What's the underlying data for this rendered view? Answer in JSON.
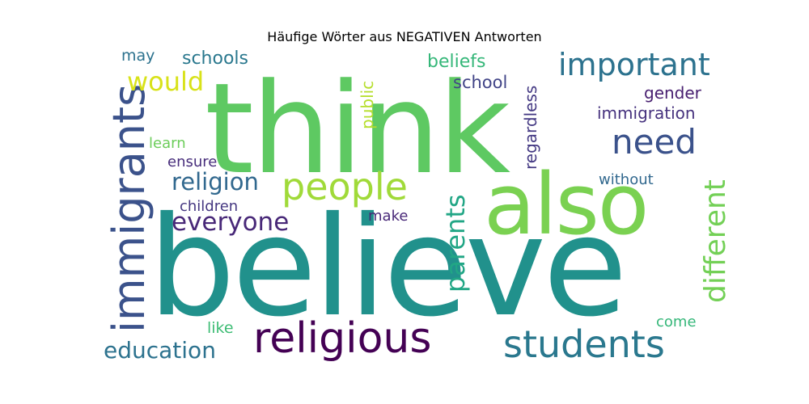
{
  "chart_data": {
    "type": "wordcloud",
    "title": "Häufige Wörter aus NEGATIVEN Antworten",
    "background": "#ffffff",
    "colormap": "viridis",
    "words": [
      {
        "text": "believe",
        "color": "#21918c",
        "rotated": false
      },
      {
        "text": "think",
        "color": "#5ec962",
        "rotated": false
      },
      {
        "text": "also",
        "color": "#7ad151",
        "rotated": false
      },
      {
        "text": "immigrants",
        "color": "#3b528b",
        "rotated": true
      },
      {
        "text": "religious",
        "color": "#440154",
        "rotated": false
      },
      {
        "text": "students",
        "color": "#2a788e",
        "rotated": false
      },
      {
        "text": "people",
        "color": "#a0da39",
        "rotated": false
      },
      {
        "text": "important",
        "color": "#2c728e",
        "rotated": false
      },
      {
        "text": "need",
        "color": "#3b528b",
        "rotated": false
      },
      {
        "text": "different",
        "color": "#73d056",
        "rotated": true
      },
      {
        "text": "parents",
        "color": "#21a685",
        "rotated": true
      },
      {
        "text": "everyone",
        "color": "#482878",
        "rotated": false
      },
      {
        "text": "religion",
        "color": "#31688e",
        "rotated": false
      },
      {
        "text": "education",
        "color": "#2c728e",
        "rotated": false
      },
      {
        "text": "would",
        "color": "#d8e219",
        "rotated": false
      },
      {
        "text": "schools",
        "color": "#2a788e",
        "rotated": false
      },
      {
        "text": "regardless",
        "color": "#443983",
        "rotated": true
      },
      {
        "text": "beliefs",
        "color": "#35b779",
        "rotated": false
      },
      {
        "text": "school",
        "color": "#414487",
        "rotated": false
      },
      {
        "text": "gender",
        "color": "#481f70",
        "rotated": false
      },
      {
        "text": "immigration",
        "color": "#46327e",
        "rotated": false
      },
      {
        "text": "public",
        "color": "#b5de2b",
        "rotated": true
      },
      {
        "text": "children",
        "color": "#453781",
        "rotated": false
      },
      {
        "text": "learn",
        "color": "#6ccd5a",
        "rotated": false
      },
      {
        "text": "ensure",
        "color": "#472d7b",
        "rotated": false
      },
      {
        "text": "without",
        "color": "#31688e",
        "rotated": false
      },
      {
        "text": "make",
        "color": "#482878",
        "rotated": false
      },
      {
        "text": "may",
        "color": "#2c728e",
        "rotated": false
      },
      {
        "text": "like",
        "color": "#3dbc74",
        "rotated": false
      },
      {
        "text": "come",
        "color": "#35b779",
        "rotated": false
      }
    ]
  }
}
